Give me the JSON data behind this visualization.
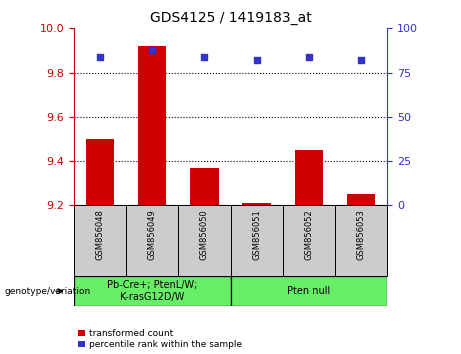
{
  "title": "GDS4125 / 1419183_at",
  "samples": [
    "GSM856048",
    "GSM856049",
    "GSM856050",
    "GSM856051",
    "GSM856052",
    "GSM856053"
  ],
  "bar_values": [
    9.5,
    9.92,
    9.37,
    9.21,
    9.45,
    9.25
  ],
  "bar_base": 9.2,
  "percentile_values": [
    84,
    88,
    84,
    82,
    84,
    82
  ],
  "ylim_left": [
    9.2,
    10.0
  ],
  "ylim_right": [
    0,
    100
  ],
  "yticks_left": [
    9.2,
    9.4,
    9.6,
    9.8,
    10.0
  ],
  "yticks_right": [
    0,
    25,
    50,
    75,
    100
  ],
  "bar_color": "#cc0000",
  "dot_color": "#3333cc",
  "group1_label": "Pb-Cre+; PtenL/W;\nK-rasG12D/W",
  "group2_label": "Pten null",
  "group_bg_color": "#66ee66",
  "sample_bg_color": "#cccccc",
  "bottom_label": "genotype/variation",
  "legend_red": "transformed count",
  "legend_blue": "percentile rank within the sample",
  "left_tick_color": "#cc0000",
  "right_tick_color": "#3333cc",
  "title_fontsize": 10,
  "axis_fontsize": 8,
  "sample_fontsize": 6,
  "group_fontsize": 7,
  "legend_fontsize": 6.5
}
